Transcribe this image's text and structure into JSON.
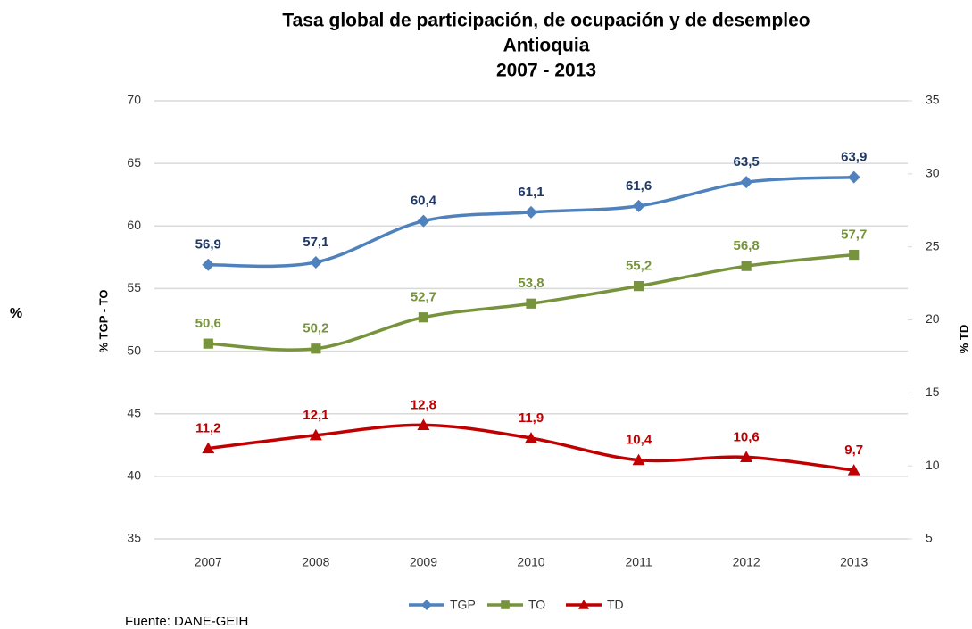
{
  "chart_data": {
    "type": "line",
    "title": "Tasa global de participación, de ocupación y de desempleo",
    "subtitle": "Antioquia",
    "period": "2007 - 2013",
    "ylabel": "% TGP - TO",
    "y2label": "% TD",
    "side_label": "%",
    "source": "Fuente: DANE-GEIH",
    "categories": [
      "2007",
      "2008",
      "2009",
      "2010",
      "2011",
      "2012",
      "2013"
    ],
    "series": [
      {
        "name": "TGP",
        "color": "#4f81bd",
        "label_color": "#1f3864",
        "marker": "diamond",
        "values": [
          56.9,
          57.1,
          60.4,
          61.1,
          61.6,
          63.5,
          63.9
        ],
        "value_labels": [
          "56,9",
          "57,1",
          "60,4",
          "61,1",
          "61,6",
          "63,5",
          "63,9"
        ]
      },
      {
        "name": "TO",
        "color": "#77933c",
        "label_color": "#77933c",
        "marker": "square",
        "values": [
          50.6,
          50.2,
          52.7,
          53.8,
          55.2,
          56.8,
          57.7
        ],
        "value_labels": [
          "50,6",
          "50,2",
          "52,7",
          "53,8",
          "55,2",
          "56,8",
          "57,7"
        ]
      },
      {
        "name": "TD",
        "color": "#c00000",
        "label_color": "#c00000",
        "marker": "triangle",
        "axis": "y2",
        "values": [
          11.2,
          12.1,
          12.8,
          11.9,
          10.4,
          10.6,
          9.7
        ],
        "value_labels": [
          "11,2",
          "12,1",
          "12,8",
          "11,9",
          "10,4",
          "10,6",
          "9,7"
        ]
      }
    ],
    "ylim": [
      35,
      70
    ],
    "yticks": [
      35,
      40,
      45,
      50,
      55,
      60,
      65,
      70
    ],
    "y2lim": [
      5,
      35
    ],
    "y2ticks": [
      5,
      10,
      15,
      20,
      25,
      30,
      35
    ],
    "grid": true,
    "legend": "bottom"
  }
}
